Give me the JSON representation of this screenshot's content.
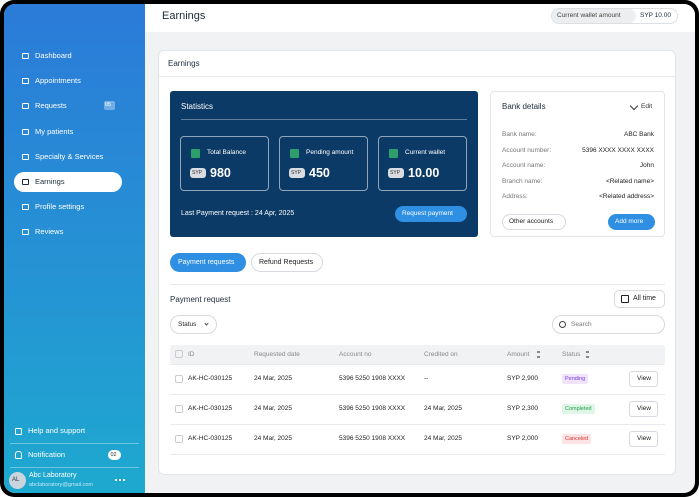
{
  "sidebar": {
    "nav": [
      "Dashboard",
      "Appointments",
      "Requests",
      "My patients",
      "Specialty & Services",
      "Earnings",
      "Profile settings",
      "Reviews"
    ],
    "requests_badge": "05",
    "help": "Help and support",
    "notification": "Notification",
    "notification_badge": "02",
    "user": {
      "initials": "AL",
      "name": "Abc Laboratory",
      "email": "abclaboratory@gmail.com"
    }
  },
  "header": {
    "title": "Earnings",
    "wallet_label": "Current wallet amount",
    "wallet_value": "SYP 10.00"
  },
  "card_title": "Earnings",
  "statistics": {
    "title": "Statistics",
    "tiles": [
      {
        "label": "Total Balance",
        "currency": "SYP",
        "amount": "980"
      },
      {
        "label": "Pending amount",
        "currency": "SYP",
        "amount": "450"
      },
      {
        "label": "Current wallet",
        "currency": "SYP",
        "amount": "10.00"
      }
    ],
    "last_payment": "Last Payment request : 24 Apr, 2025",
    "button": "Request payment"
  },
  "bank": {
    "title": "Bank details",
    "edit": "Edit",
    "rows": [
      [
        "Bank name:",
        "ABC Bank"
      ],
      [
        "Account number:",
        "5396 XXXX XXXX XXXX"
      ],
      [
        "Account name:",
        "John"
      ],
      [
        "Branch name:",
        "<Related name>"
      ],
      [
        "Address:",
        "<Related address>"
      ]
    ],
    "other": "Other accounts",
    "add": "Add more"
  },
  "tabs": [
    "Payment requests",
    "Refund Requests"
  ],
  "payment": {
    "title": "Payment request",
    "all_time": "All time",
    "status_filter": "Status",
    "search": "Search"
  },
  "table": {
    "headers": [
      "ID",
      "Requested date",
      "Account no",
      "Credited on",
      "Amount",
      "Status"
    ],
    "rows": [
      [
        "AK-HC-030125",
        "24 Mar, 2025",
        "5396 5250 1908 XXXX",
        "--",
        "SYP 2,900",
        "Pending",
        "View"
      ],
      [
        "AK-HC-030125",
        "24 Mar, 2025",
        "5396 5250 1908 XXXX",
        "24 Mar, 2025",
        "SYP 2,300",
        "Completed",
        "View"
      ],
      [
        "AK-HC-030125",
        "24 Mar, 2025",
        "5396 5250 1908 XXXX",
        "24 Mar, 2025",
        "SYP 2,000",
        "Canceled",
        "View"
      ]
    ]
  }
}
